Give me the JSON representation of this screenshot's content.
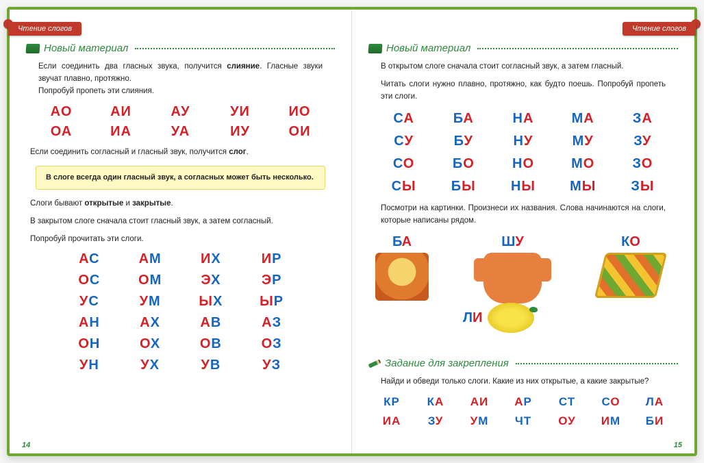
{
  "tab_label": "Чтение слогов",
  "section_new": "Новый материал",
  "section_task": "Задание для закрепления",
  "left": {
    "para1_a": "Если соединить два гласных звука, получится ",
    "para1_b": "слияние",
    "para1_c": ". Гласные звуки звучат плавно, протяжно.",
    "para1_d": "Попробуй пропеть эти слияния.",
    "vowel_pairs": [
      [
        [
          "А",
          "r"
        ],
        [
          "О",
          "r"
        ]
      ],
      [
        [
          "А",
          "r"
        ],
        [
          "И",
          "r"
        ]
      ],
      [
        [
          "А",
          "r"
        ],
        [
          "У",
          "r"
        ]
      ],
      [
        [
          "У",
          "r"
        ],
        [
          "И",
          "r"
        ]
      ],
      [
        [
          "И",
          "r"
        ],
        [
          "О",
          "r"
        ]
      ],
      [
        [
          "О",
          "r"
        ],
        [
          "А",
          "r"
        ]
      ],
      [
        [
          "И",
          "r"
        ],
        [
          "А",
          "r"
        ]
      ],
      [
        [
          "У",
          "r"
        ],
        [
          "А",
          "r"
        ]
      ],
      [
        [
          "И",
          "r"
        ],
        [
          "У",
          "r"
        ]
      ],
      [
        [
          "О",
          "r"
        ],
        [
          "И",
          "r"
        ]
      ]
    ],
    "para2_a": "Если соединить согласный и гласный звук, получится ",
    "para2_b": "слог",
    "para2_c": ".",
    "note": "В слоге всегда один гласный звук, а согласных может быть несколько.",
    "para3_a": "Слоги бывают ",
    "para3_b": "открытые",
    "para3_c": " и ",
    "para3_d": "закрытые",
    "para3_e": ".",
    "para4": "В закрытом слоге сначала стоит гласный звук, а затем согласный.",
    "para5": "Попробуй прочитать эти слоги.",
    "closed": [
      [
        [
          "А",
          "r"
        ],
        [
          "С",
          "b"
        ]
      ],
      [
        [
          "А",
          "r"
        ],
        [
          "М",
          "b"
        ]
      ],
      [
        [
          "И",
          "r"
        ],
        [
          "Х",
          "b"
        ]
      ],
      [
        [
          "И",
          "r"
        ],
        [
          "Р",
          "b"
        ]
      ],
      [
        [
          "О",
          "r"
        ],
        [
          "С",
          "b"
        ]
      ],
      [
        [
          "О",
          "r"
        ],
        [
          "М",
          "b"
        ]
      ],
      [
        [
          "Э",
          "r"
        ],
        [
          "Х",
          "b"
        ]
      ],
      [
        [
          "Э",
          "r"
        ],
        [
          "Р",
          "b"
        ]
      ],
      [
        [
          "У",
          "r"
        ],
        [
          "С",
          "b"
        ]
      ],
      [
        [
          "У",
          "r"
        ],
        [
          "М",
          "b"
        ]
      ],
      [
        [
          "Ы",
          "r"
        ],
        [
          "Х",
          "b"
        ]
      ],
      [
        [
          "Ы",
          "r"
        ],
        [
          "Р",
          "b"
        ]
      ],
      [
        [
          "А",
          "r"
        ],
        [
          "Н",
          "b"
        ]
      ],
      [
        [
          "А",
          "r"
        ],
        [
          "Х",
          "b"
        ]
      ],
      [
        [
          "А",
          "r"
        ],
        [
          "В",
          "b"
        ]
      ],
      [
        [
          "А",
          "r"
        ],
        [
          "З",
          "b"
        ]
      ],
      [
        [
          "О",
          "r"
        ],
        [
          "Н",
          "b"
        ]
      ],
      [
        [
          "О",
          "r"
        ],
        [
          "Х",
          "b"
        ]
      ],
      [
        [
          "О",
          "r"
        ],
        [
          "В",
          "b"
        ]
      ],
      [
        [
          "О",
          "r"
        ],
        [
          "З",
          "b"
        ]
      ],
      [
        [
          "У",
          "r"
        ],
        [
          "Н",
          "b"
        ]
      ],
      [
        [
          "У",
          "r"
        ],
        [
          "Х",
          "b"
        ]
      ],
      [
        [
          "У",
          "r"
        ],
        [
          "В",
          "b"
        ]
      ],
      [
        [
          "У",
          "r"
        ],
        [
          "З",
          "b"
        ]
      ]
    ],
    "page_num": "14"
  },
  "right": {
    "para1": "В открытом слоге сначала стоит согласный звук, а затем гласный.",
    "para2": "Читать слоги нужно плавно, протяжно, как будто поешь. Попробуй пропеть эти слоги.",
    "open": [
      [
        [
          "С",
          "b"
        ],
        [
          "А",
          "r"
        ]
      ],
      [
        [
          "Б",
          "b"
        ],
        [
          "А",
          "r"
        ]
      ],
      [
        [
          "Н",
          "b"
        ],
        [
          "А",
          "r"
        ]
      ],
      [
        [
          "М",
          "b"
        ],
        [
          "А",
          "r"
        ]
      ],
      [
        [
          "З",
          "b"
        ],
        [
          "А",
          "r"
        ]
      ],
      [
        [
          "С",
          "b"
        ],
        [
          "У",
          "r"
        ]
      ],
      [
        [
          "Б",
          "b"
        ],
        [
          "У",
          "r"
        ]
      ],
      [
        [
          "Н",
          "b"
        ],
        [
          "У",
          "r"
        ]
      ],
      [
        [
          "М",
          "b"
        ],
        [
          "У",
          "r"
        ]
      ],
      [
        [
          "З",
          "b"
        ],
        [
          "У",
          "r"
        ]
      ],
      [
        [
          "С",
          "b"
        ],
        [
          "О",
          "r"
        ]
      ],
      [
        [
          "Б",
          "b"
        ],
        [
          "О",
          "r"
        ]
      ],
      [
        [
          "Н",
          "b"
        ],
        [
          "О",
          "r"
        ]
      ],
      [
        [
          "М",
          "b"
        ],
        [
          "О",
          "r"
        ]
      ],
      [
        [
          "З",
          "b"
        ],
        [
          "О",
          "r"
        ]
      ],
      [
        [
          "С",
          "b"
        ],
        [
          "Ы",
          "r"
        ]
      ],
      [
        [
          "Б",
          "b"
        ],
        [
          "Ы",
          "r"
        ]
      ],
      [
        [
          "Н",
          "b"
        ],
        [
          "Ы",
          "r"
        ]
      ],
      [
        [
          "М",
          "b"
        ],
        [
          "Ы",
          "r"
        ]
      ],
      [
        [
          "З",
          "b"
        ],
        [
          "Ы",
          "r"
        ]
      ]
    ],
    "para3": "Посмотри на картинки. Произнеси их названия. Слова начинаются на слоги, которые написаны рядом.",
    "pics": {
      "ba": [
        [
          "Б",
          "b"
        ],
        [
          "А",
          "r"
        ]
      ],
      "shu": [
        [
          "Ш",
          "b"
        ],
        [
          "У",
          "r"
        ]
      ],
      "ko": [
        [
          "К",
          "b"
        ],
        [
          "О",
          "r"
        ]
      ],
      "li": [
        [
          "Л",
          "b"
        ],
        [
          "И",
          "r"
        ]
      ]
    },
    "task_text": "Найди и обведи только слоги. Какие из них открытые, а какие закрытые?",
    "task_grid": [
      [
        [
          "К",
          "b"
        ],
        [
          "Р",
          "b"
        ]
      ],
      [
        [
          "К",
          "b"
        ],
        [
          "А",
          "r"
        ]
      ],
      [
        [
          "А",
          "r"
        ],
        [
          "И",
          "r"
        ]
      ],
      [
        [
          "А",
          "r"
        ],
        [
          "Р",
          "b"
        ]
      ],
      [
        [
          "С",
          "b"
        ],
        [
          "Т",
          "b"
        ]
      ],
      [
        [
          "С",
          "b"
        ],
        [
          "О",
          "r"
        ]
      ],
      [
        [
          "Л",
          "b"
        ],
        [
          "А",
          "r"
        ]
      ],
      [
        [
          "И",
          "r"
        ],
        [
          "А",
          "r"
        ]
      ],
      [
        [
          "З",
          "b"
        ],
        [
          "У",
          "r"
        ]
      ],
      [
        [
          "У",
          "r"
        ],
        [
          "М",
          "b"
        ]
      ],
      [
        [
          "Ч",
          "b"
        ],
        [
          "Т",
          "b"
        ]
      ],
      [
        [
          "О",
          "r"
        ],
        [
          "У",
          "r"
        ]
      ],
      [
        [
          "И",
          "r"
        ],
        [
          "М",
          "b"
        ]
      ],
      [
        [
          "Б",
          "b"
        ],
        [
          "И",
          "r"
        ]
      ]
    ],
    "page_num": "15"
  },
  "colors": {
    "vowel": "#d62027",
    "consonant": "#1665c1",
    "green": "#2e8b3d",
    "tab": "#c0392b",
    "border": "#6fa830",
    "note_bg": "#fff9c4"
  }
}
